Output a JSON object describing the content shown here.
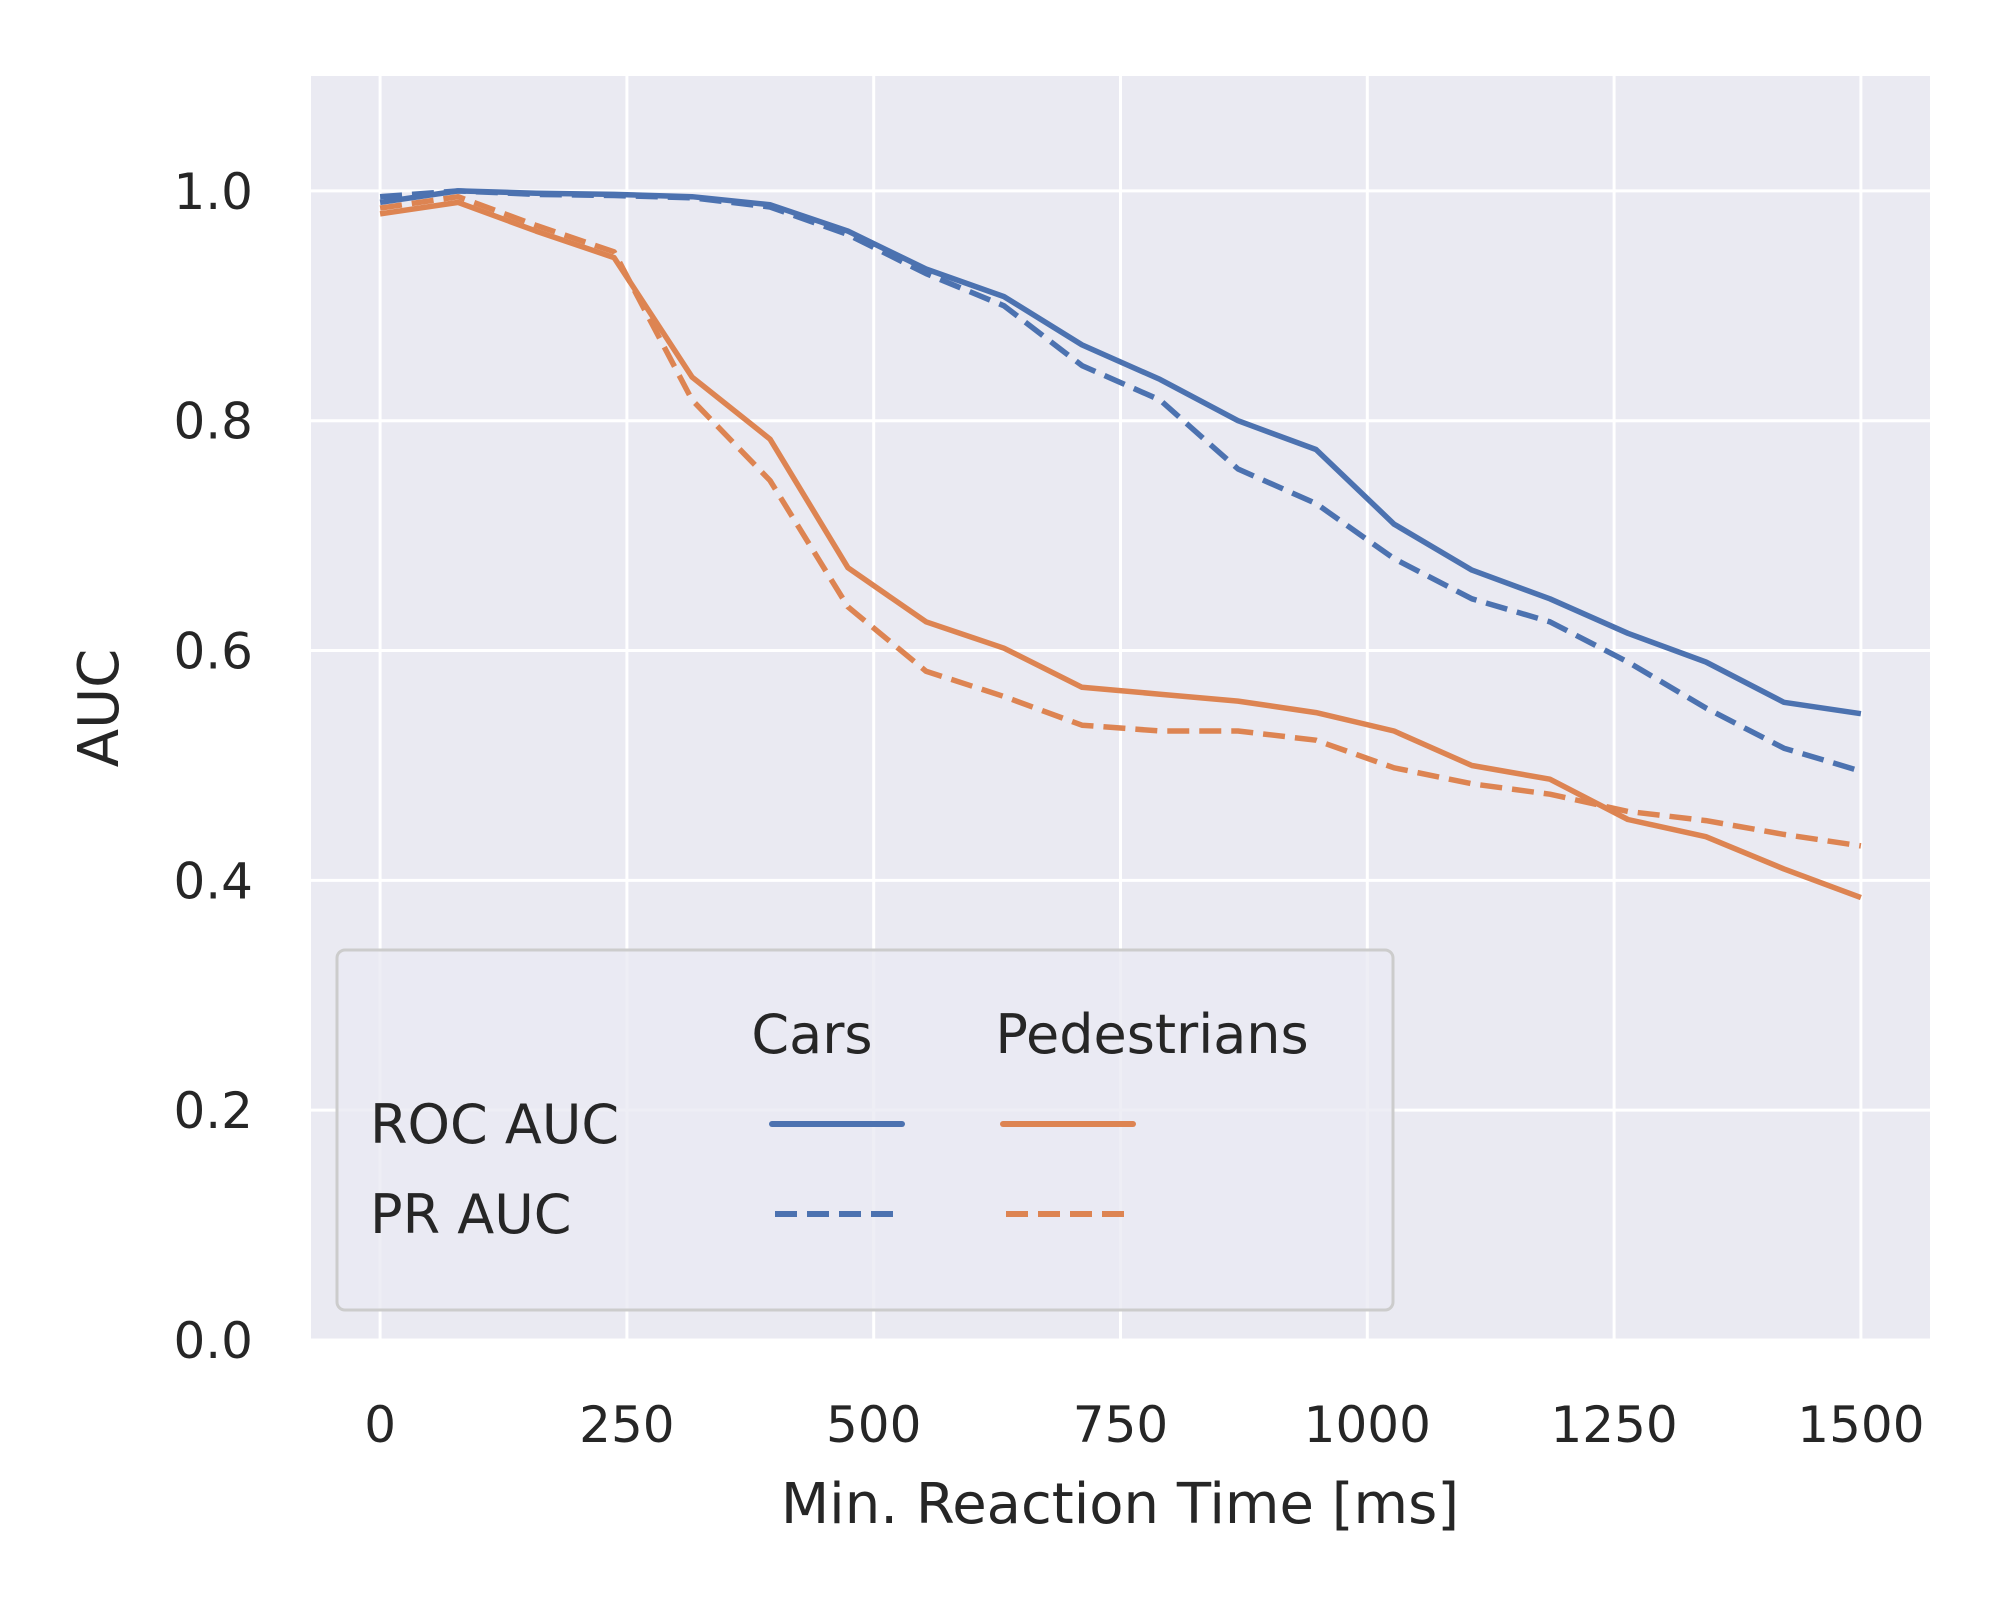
{
  "chart_data": {
    "type": "line",
    "xlabel": "Min. Reaction Time [ms]",
    "ylabel": "AUC",
    "xlim": [
      -70,
      1570
    ],
    "ylim": [
      0,
      1.1
    ],
    "x_ticks": [
      0,
      250,
      500,
      750,
      1000,
      1250,
      1500
    ],
    "y_ticks": [
      0.0,
      0.2,
      0.4,
      0.6,
      0.8,
      1.0
    ],
    "x_tick_labels": [
      "0",
      "250",
      "500",
      "750",
      "1000",
      "1250",
      "1500"
    ],
    "y_tick_labels": [
      "0.0",
      "0.2",
      "0.4",
      "0.6",
      "0.8",
      "1.0"
    ],
    "grid": true,
    "x": [
      0,
      79,
      158,
      237,
      316,
      395,
      474,
      553,
      632,
      711,
      790,
      869,
      948,
      1027,
      1106,
      1185,
      1264,
      1343,
      1422,
      1500
    ],
    "series": [
      {
        "name": "Cars ROC AUC",
        "color": "#4c72b0",
        "dash": "solid",
        "values": [
          0.99,
          1.0,
          0.998,
          0.997,
          0.995,
          0.988,
          0.965,
          0.932,
          0.908,
          0.866,
          0.836,
          0.8,
          0.775,
          0.71,
          0.67,
          0.645,
          0.615,
          0.59,
          0.555,
          0.545
        ]
      },
      {
        "name": "Cars PR AUC",
        "color": "#4c72b0",
        "dash": "dashed",
        "values": [
          0.995,
          1.0,
          0.997,
          0.996,
          0.994,
          0.986,
          0.962,
          0.928,
          0.9,
          0.848,
          0.818,
          0.758,
          0.728,
          0.68,
          0.645,
          0.625,
          0.59,
          0.55,
          0.515,
          0.495
        ]
      },
      {
        "name": "Pedestrians ROC AUC",
        "color": "#dd8452",
        "dash": "solid",
        "values": [
          0.98,
          0.99,
          0.965,
          0.942,
          0.838,
          0.784,
          0.672,
          0.625,
          0.602,
          0.568,
          0.562,
          0.556,
          0.546,
          0.53,
          0.5,
          0.488,
          0.453,
          0.438,
          0.41,
          0.385
        ]
      },
      {
        "name": "Pedestrians PR AUC",
        "color": "#dd8452",
        "dash": "dashed",
        "values": [
          0.985,
          0.995,
          0.97,
          0.947,
          0.818,
          0.748,
          0.638,
          0.582,
          0.56,
          0.535,
          0.53,
          0.53,
          0.522,
          0.498,
          0.484,
          0.475,
          0.46,
          0.452,
          0.44,
          0.43
        ]
      }
    ],
    "legend": {
      "placement": "lower-left",
      "column_headers": [
        "Cars",
        "Pedestrians"
      ],
      "row_labels": [
        "ROC AUC",
        "PR AUC"
      ]
    }
  }
}
